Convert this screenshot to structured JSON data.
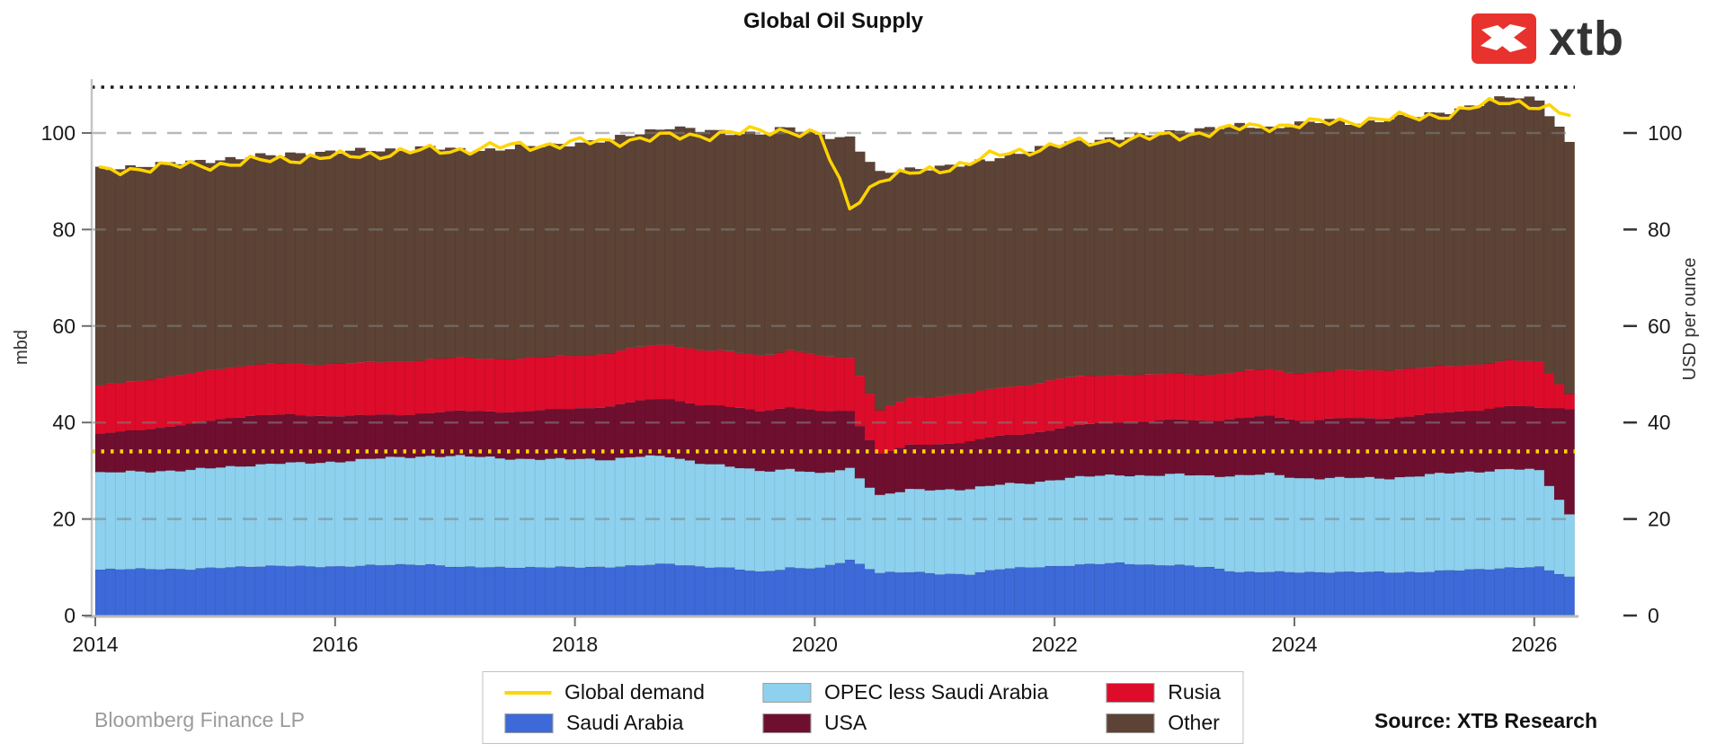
{
  "title": "Global Oil Supply",
  "logo": {
    "text": "xtb",
    "brand_color": "#e8322e",
    "icon": "xtb-x-mark"
  },
  "footer": {
    "left_caption": "Bloomberg Finance LP",
    "right_caption": "Source: XTB Research"
  },
  "chart_data": {
    "type": "stacked-bar+line",
    "title": "Global Oil Supply",
    "ylabel_left": "mbd",
    "ylabel_right": "USD per ounce",
    "y_ticks": [
      0,
      20,
      40,
      60,
      80,
      100
    ],
    "ylim": [
      0,
      112
    ],
    "x_ticks": [
      2014,
      2016,
      2018,
      2020,
      2022,
      2024,
      2026
    ],
    "xlim": [
      2013.95,
      2026.4
    ],
    "grid": "horizontal dashed gray at y ticks",
    "legend_position": "bottom-center",
    "reference_lines": [
      {
        "name": "upper-dotted-reference",
        "value": 109.5,
        "color": "#1a1a1a",
        "style": "dotted"
      },
      {
        "name": "lower-dotted-reference",
        "value": 34,
        "color": "#ffd400",
        "style": "dotted"
      }
    ],
    "x_anchors": [
      2014,
      2014.25,
      2014.5,
      2014.75,
      2015,
      2015.25,
      2015.5,
      2015.75,
      2016,
      2016.25,
      2016.5,
      2016.75,
      2017,
      2017.25,
      2017.5,
      2017.75,
      2018,
      2018.25,
      2018.5,
      2018.75,
      2019,
      2019.25,
      2019.5,
      2019.75,
      2020,
      2020.25,
      2020.5,
      2020.75,
      2021,
      2021.25,
      2021.5,
      2021.75,
      2022,
      2022.25,
      2022.5,
      2022.75,
      2023,
      2023.25,
      2023.5,
      2023.75,
      2024,
      2024.25,
      2024.5,
      2024.75,
      2025,
      2025.25,
      2025.5,
      2025.75,
      2026,
      2026.25
    ],
    "series": [
      {
        "name": "Saudi Arabia",
        "color": "#3d6ad8",
        "values": [
          9.5,
          9.6,
          9.7,
          9.6,
          9.9,
          10.2,
          10.3,
          10.1,
          10.2,
          10.4,
          10.5,
          10.6,
          10.0,
          10.0,
          10.0,
          10.0,
          10.0,
          10.1,
          10.4,
          10.7,
          10.2,
          9.8,
          9.0,
          9.9,
          9.8,
          11.5,
          8.9,
          9.0,
          8.6,
          8.6,
          9.6,
          10.0,
          10.3,
          10.6,
          10.9,
          10.5,
          10.4,
          10.0,
          9.0,
          9.0,
          9.0,
          9.0,
          9.0,
          9.0,
          9.0,
          9.3,
          9.6,
          9.9,
          10.0,
          8.0
        ]
      },
      {
        "name": "OPEC less Saudi Arabia",
        "color": "#8dd1ee",
        "values": [
          20.0,
          20.2,
          20.3,
          20.5,
          20.8,
          21.0,
          21.2,
          21.5,
          21.8,
          22.0,
          22.3,
          22.5,
          23.0,
          22.8,
          22.5,
          22.3,
          22.5,
          22.3,
          22.5,
          22.3,
          21.5,
          21.0,
          21.0,
          20.5,
          19.5,
          19.0,
          16.0,
          17.0,
          17.5,
          17.7,
          17.5,
          17.5,
          18.0,
          18.2,
          18.3,
          18.5,
          18.8,
          19.0,
          20.0,
          20.3,
          19.5,
          19.5,
          19.5,
          19.5,
          20.0,
          20.2,
          20.3,
          20.5,
          20.0,
          13.0
        ]
      },
      {
        "name": "USA",
        "color": "#6f0f2f",
        "values": [
          8.0,
          8.5,
          9.0,
          9.5,
          10.0,
          10.3,
          10.0,
          9.8,
          9.5,
          9.0,
          8.8,
          9.0,
          9.3,
          9.5,
          9.8,
          10.2,
          10.5,
          11.0,
          11.5,
          12.0,
          12.0,
          12.3,
          12.5,
          12.8,
          12.9,
          12.0,
          8.6,
          9.2,
          9.5,
          9.8,
          10.0,
          10.3,
          10.5,
          10.8,
          11.0,
          11.2,
          11.3,
          11.5,
          11.8,
          12.0,
          12.0,
          12.2,
          12.3,
          12.5,
          12.5,
          12.6,
          12.8,
          13.0,
          13.0,
          22.0
        ]
      },
      {
        "name": "Rusia",
        "color": "#dd0c2a",
        "values": [
          10.0,
          10.2,
          10.3,
          10.4,
          10.5,
          10.5,
          10.6,
          10.7,
          10.8,
          10.9,
          11.0,
          11.1,
          11.0,
          11.0,
          11.0,
          11.0,
          11.0,
          11.0,
          11.2,
          11.3,
          11.3,
          11.5,
          11.5,
          11.7,
          11.5,
          11.0,
          9.0,
          9.8,
          10.0,
          10.0,
          10.0,
          10.2,
          10.3,
          10.0,
          9.8,
          9.7,
          9.5,
          9.5,
          9.7,
          9.7,
          9.8,
          9.9,
          10.0,
          10.0,
          9.7,
          9.6,
          9.5,
          9.4,
          9.5,
          3.0
        ]
      },
      {
        "name": "Other",
        "color": "#5c4336",
        "values": [
          45.0,
          44.5,
          44.2,
          44.0,
          43.3,
          43.0,
          43.4,
          43.9,
          43.7,
          44.2,
          43.9,
          43.8,
          43.2,
          43.2,
          43.7,
          44.0,
          44.0,
          44.1,
          44.4,
          45.0,
          45.5,
          45.4,
          46.0,
          46.1,
          45.8,
          45.5,
          49.0,
          47.5,
          47.4,
          47.4,
          47.9,
          48.5,
          48.4,
          48.9,
          49.0,
          49.6,
          50.5,
          51.0,
          51.0,
          50.0,
          51.7,
          51.9,
          51.2,
          52.0,
          52.3,
          52.8,
          53.8,
          54.7,
          54.5,
          52.0
        ]
      }
    ],
    "line_series": {
      "name": "Global demand",
      "color": "#ffd400",
      "values": [
        92.0,
        92.5,
        93.0,
        93.2,
        93.5,
        94.0,
        94.5,
        95.0,
        95.0,
        95.5,
        96.0,
        96.3,
        96.5,
        97.0,
        97.3,
        97.6,
        98.0,
        98.3,
        98.8,
        99.2,
        99.5,
        100.0,
        100.3,
        100.6,
        99.5,
        84.5,
        90.5,
        91.5,
        92.5,
        94.0,
        95.5,
        96.5,
        97.5,
        98.0,
        98.5,
        99.0,
        99.5,
        100.3,
        101.0,
        101.5,
        101.8,
        102.2,
        102.6,
        103.0,
        103.3,
        104.0,
        105.5,
        106.8,
        105.5,
        103.5
      ]
    },
    "legend": {
      "items": [
        {
          "label": "Global demand",
          "color": "#ffd400",
          "swatch": "line"
        },
        {
          "label": "Saudi Arabia",
          "color": "#3d6ad8",
          "swatch": "box"
        },
        {
          "label": "OPEC less Saudi Arabia",
          "color": "#8dd1ee",
          "swatch": "box"
        },
        {
          "label": "USA",
          "color": "#6f0f2f",
          "swatch": "box"
        },
        {
          "label": "Rusia",
          "color": "#dd0c2a",
          "swatch": "box"
        },
        {
          "label": "Other",
          "color": "#5c4336",
          "swatch": "box"
        }
      ]
    }
  }
}
